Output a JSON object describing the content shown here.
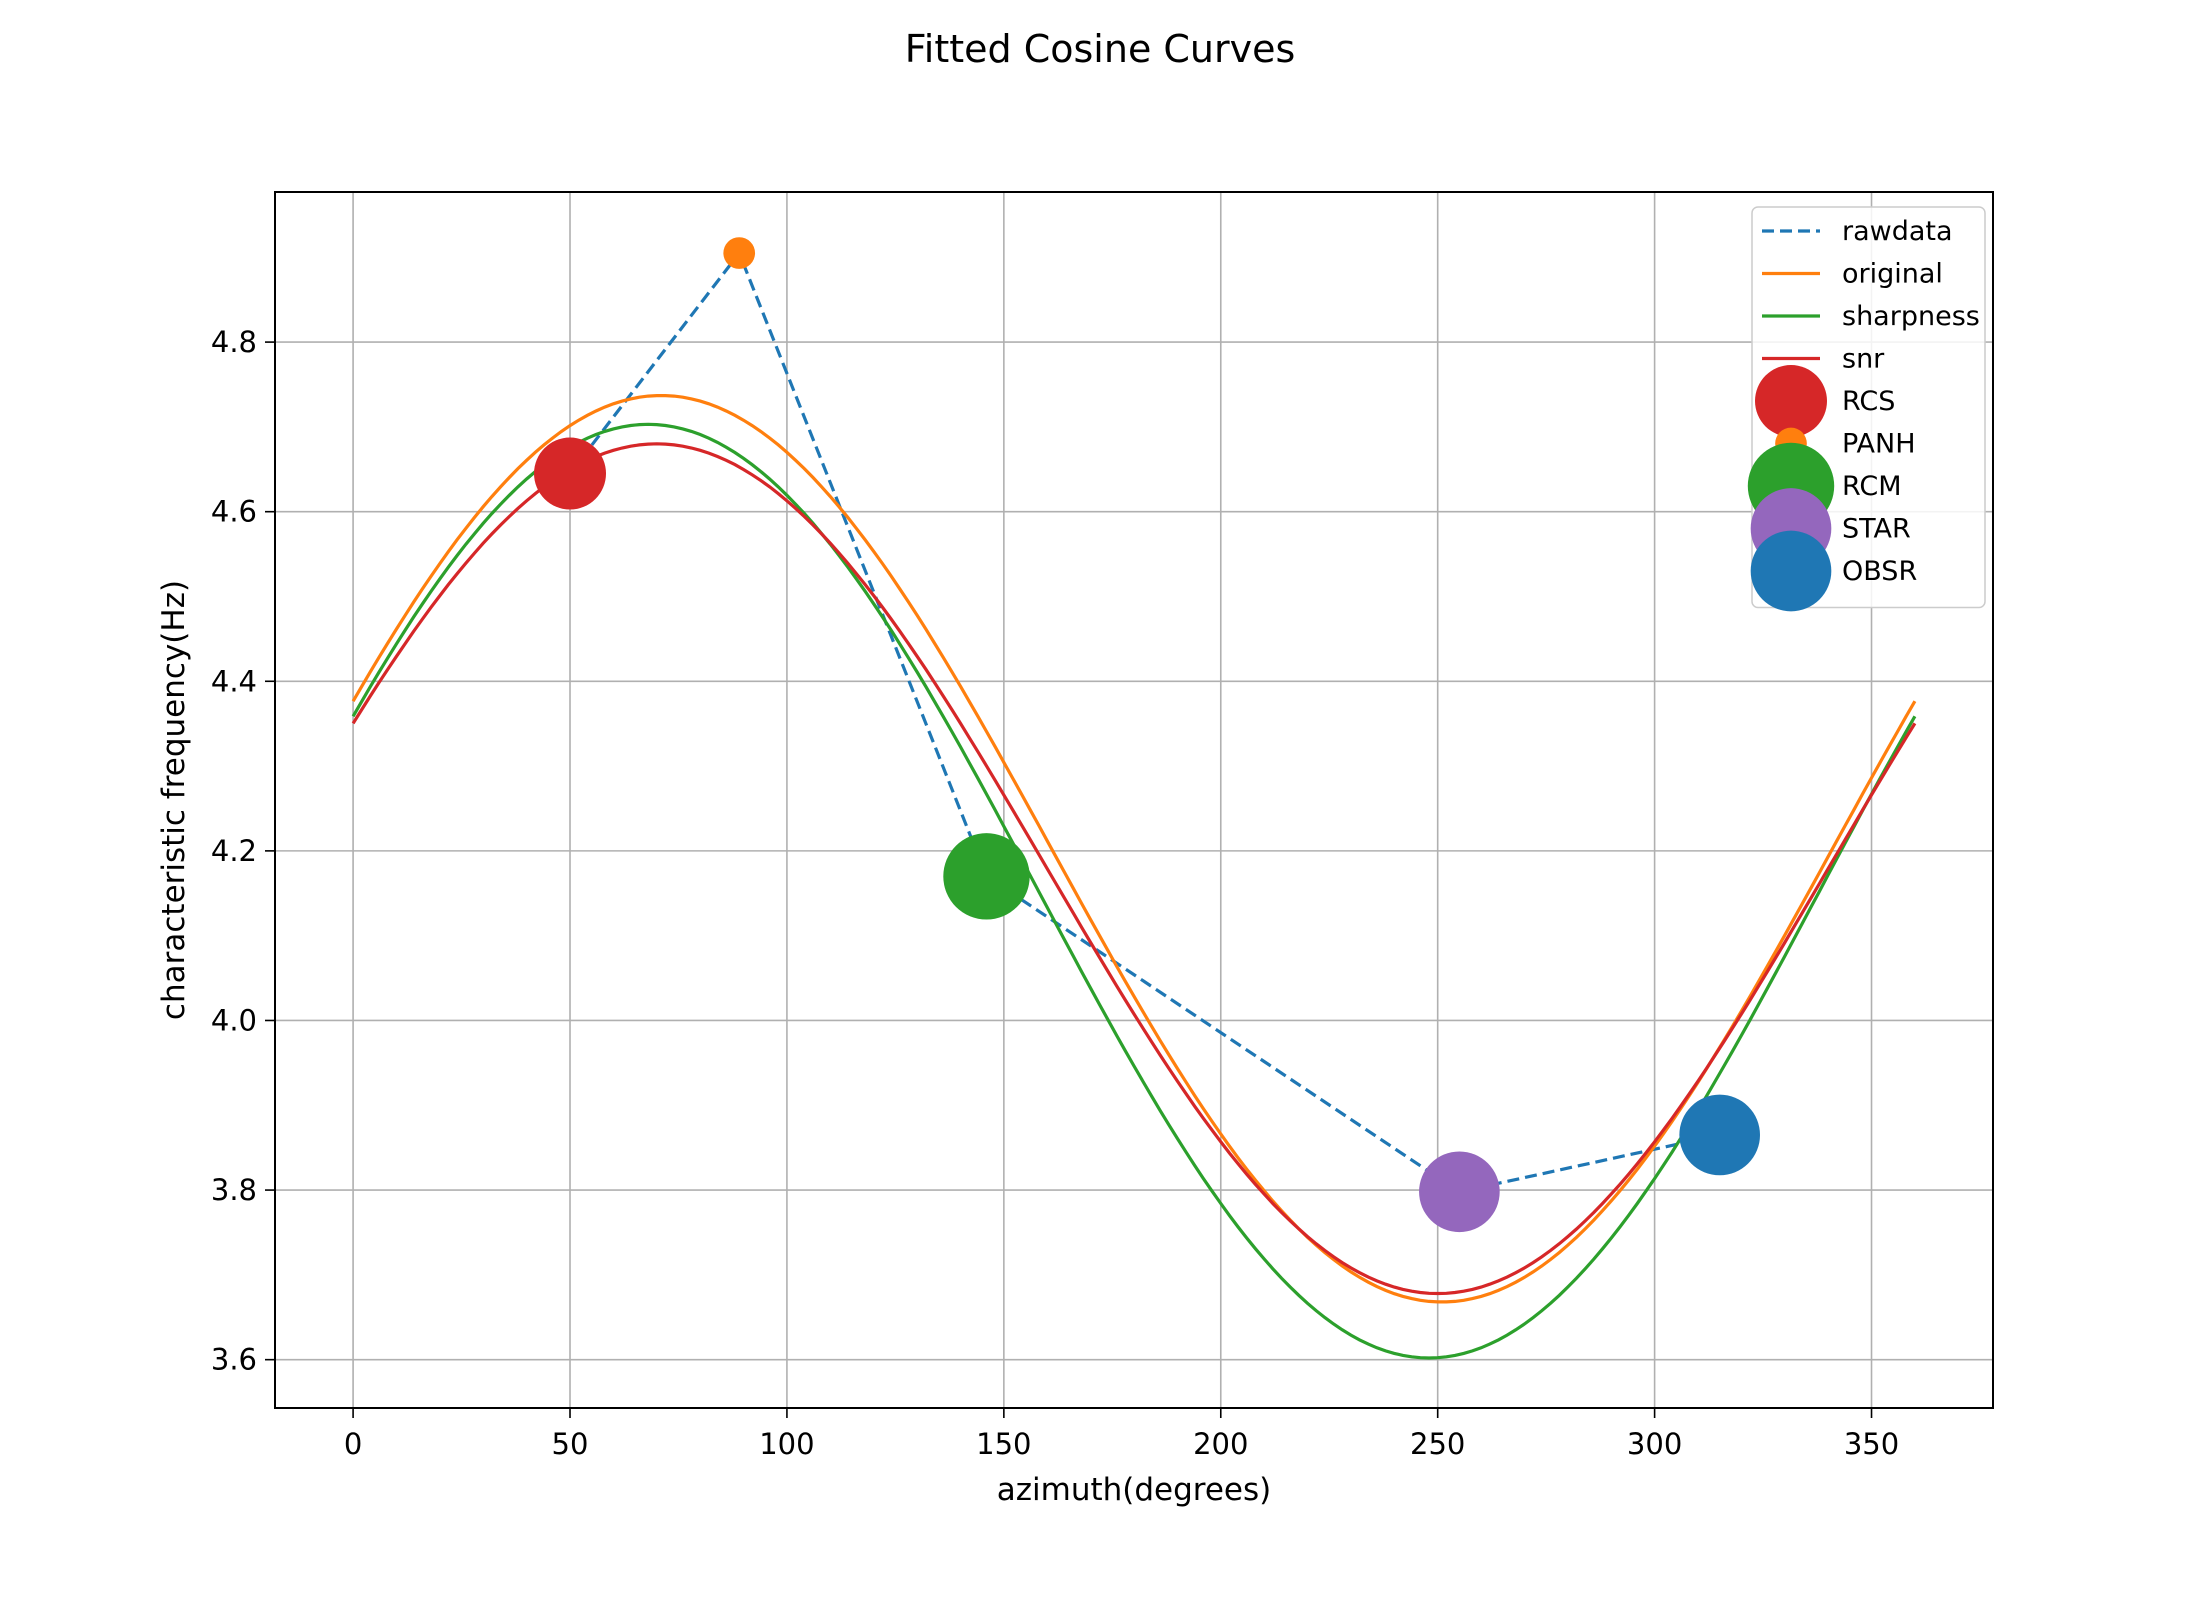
{
  "chart_data": {
    "type": "line",
    "title": "Fitted Cosine Curves",
    "xlabel": "azimuth(degrees)",
    "ylabel": "characteristic frequency(Hz)",
    "xlim": [
      -18,
      378
    ],
    "ylim": [
      3.543,
      4.977
    ],
    "xticks": [
      0,
      50,
      100,
      150,
      200,
      250,
      300,
      350
    ],
    "yticks": [
      3.6,
      3.8,
      4.0,
      4.2,
      4.4,
      4.6,
      4.8
    ],
    "grid": true,
    "legend_position": "top-right",
    "raw_series": {
      "name": "rawdata",
      "color": "#1f77b4",
      "style": "dashed",
      "x": [
        50,
        89,
        146,
        255,
        315
      ],
      "y": [
        4.645,
        4.905,
        4.17,
        3.798,
        3.865
      ]
    },
    "fit_series": [
      {
        "name": "original",
        "color": "#ff7f0e",
        "offset": 4.2025,
        "amplitude": 0.5345,
        "phase_deg": 71
      },
      {
        "name": "sharpness",
        "color": "#2ca02c",
        "offset": 4.1525,
        "amplitude": 0.5505,
        "phase_deg": 68
      },
      {
        "name": "snr",
        "color": "#d62728",
        "offset": 4.179,
        "amplitude": 0.501,
        "phase_deg": 70
      }
    ],
    "points": [
      {
        "name": "RCS",
        "x": 50,
        "y": 4.645,
        "color": "#d62728",
        "size": 1.0
      },
      {
        "name": "PANH",
        "x": 89,
        "y": 4.905,
        "color": "#ff7f0e",
        "size": 0.44
      },
      {
        "name": "RCM",
        "x": 146,
        "y": 4.17,
        "color": "#2ca02c",
        "size": 1.2
      },
      {
        "name": "STAR",
        "x": 255,
        "y": 3.798,
        "color": "#9467bd",
        "size": 1.12
      },
      {
        "name": "OBSR",
        "x": 315,
        "y": 3.865,
        "color": "#1f77b4",
        "size": 1.12
      }
    ]
  }
}
